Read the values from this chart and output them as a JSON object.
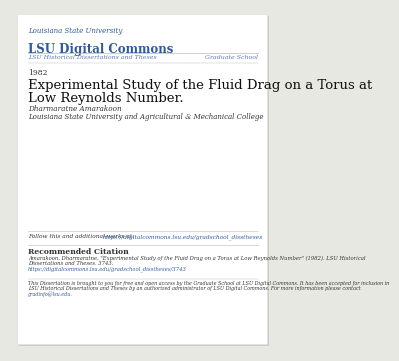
{
  "background_color": "#e8e8e3",
  "page_bg": "#ffffff",
  "header_university": "Louisiana State University",
  "header_commons": "LSU Digital Commons",
  "header_color": "#2e5a9c",
  "nav_left": "LSU Historical Dissertations and Theses",
  "nav_right": "Graduate School",
  "nav_color": "#5a7ab5",
  "year": "1982",
  "title_line1": "Experimental Study of the Fluid Drag on a Torus at",
  "title_line2": "Low Reynolds Number.",
  "author": "Dharmaratne Amarakoon",
  "affiliation": "Louisiana State University and Agricultural & Mechanical College",
  "follow_text": "Follow this and additional works at: ",
  "follow_link": "https://digitalcommons.lsu.edu/gradschool_disstheses",
  "rec_citation_header": "Recommended Citation",
  "rec_citation_line1": "Amarakoon, Dharmaratne, \"Experimental Study of the Fluid Drag on a Torus at Low Reynolds Number\" (1982). LSU Historical",
  "rec_citation_line2": "Dissertations and Theses. 3743.",
  "rec_citation_link": "https://digitalcommons.lsu.edu/gradschool_disstheses/3743",
  "disclaimer_line1": "This Dissertation is brought to you for free and open access by the Graduate School at LSU Digital Commons. It has been accepted for inclusion in",
  "disclaimer_line2": "LSU Historical Dissertations and Theses by an authorized administrator of LSU Digital Commons. For more information please contact",
  "disclaimer_link": "gradinfo@lsu.edu.",
  "link_color": "#2e5a9c",
  "text_color": "#333333",
  "line_color": "#bbbbbb"
}
